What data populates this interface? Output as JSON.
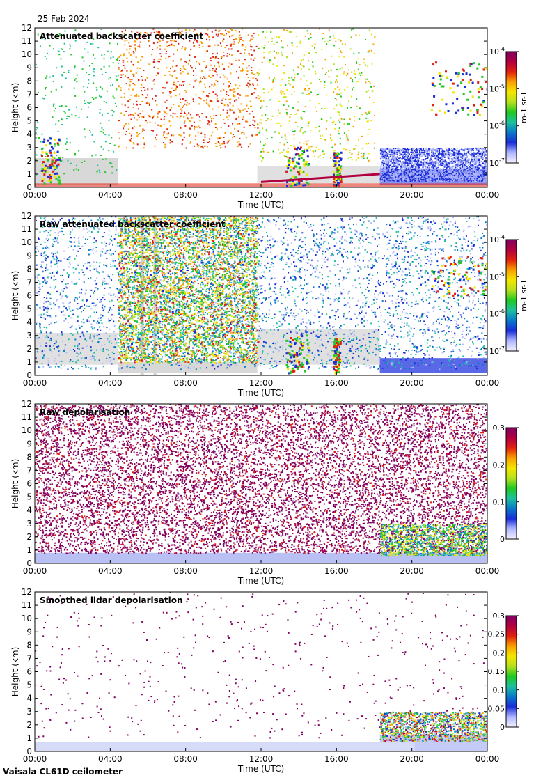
{
  "header": {
    "date": "25 Feb 2024"
  },
  "footer": {
    "instrument": "Vaisala CL61D ceilometer"
  },
  "chart_data": [
    {
      "type": "heatmap",
      "title": "Attenuated backscatter coefficient",
      "xlabel": "Time (UTC)",
      "ylabel": "Height (km)",
      "xticks": [
        "00:00",
        "04:00",
        "08:00",
        "12:00",
        "16:00",
        "20:00",
        "00:00"
      ],
      "xlim_hours": [
        0,
        24
      ],
      "ylim": [
        0,
        12
      ],
      "yticks": [
        0,
        1,
        2,
        3,
        4,
        5,
        6,
        7,
        8,
        9,
        10,
        11,
        12
      ],
      "colorbar": {
        "scale": "log",
        "units": "m-1 sr-1",
        "ticks": [
          "10-4",
          "10-5",
          "10-6",
          "10-7"
        ],
        "range": [
          1e-07,
          0.0001
        ]
      },
      "features": [
        {
          "name": "surface layer",
          "t_start": 0,
          "t_end": 24,
          "top_km": 0.3
        },
        {
          "name": "cloud",
          "t_start": 0.3,
          "t_end": 1.3,
          "base_km": 0.3,
          "top_km": 3.8
        },
        {
          "name": "cloud",
          "t_start": 13.3,
          "t_end": 14.5,
          "base_km": 0.2,
          "top_km": 3.1
        },
        {
          "name": "cloud",
          "t_start": 15.8,
          "t_end": 16.2,
          "base_km": 0.2,
          "top_km": 2.8
        },
        {
          "name": "boundary layer top",
          "t_start": 12,
          "t_end": 18.3,
          "height_km_from": 0.4,
          "height_km_to": 1.0
        },
        {
          "name": "upper cloud",
          "t_start": 21,
          "t_end": 24,
          "base_km": 5.5,
          "top_km": 9.5
        }
      ]
    },
    {
      "type": "heatmap",
      "title": "Raw attenuated backscatter coefficient",
      "xlabel": "Time (UTC)",
      "ylabel": "Height (km)",
      "xticks": [
        "00:00",
        "04:00",
        "08:00",
        "12:00",
        "16:00",
        "20:00",
        "00:00"
      ],
      "xlim_hours": [
        0,
        24
      ],
      "ylim": [
        0,
        12
      ],
      "yticks": [
        0,
        1,
        2,
        3,
        4,
        5,
        6,
        7,
        8,
        9,
        10,
        11,
        12
      ],
      "colorbar": {
        "scale": "log",
        "units": "m-1 sr-1",
        "ticks": [
          "10-4",
          "10-5",
          "10-6",
          "10-7"
        ],
        "range": [
          1e-07,
          0.0001
        ]
      },
      "features": [
        {
          "name": "high solar noise",
          "t_start": 4.4,
          "t_end": 11.8,
          "base_km": 1.0,
          "top_km": 12
        },
        {
          "name": "cloud",
          "t_start": 13.3,
          "t_end": 14.5,
          "base_km": 0.2,
          "top_km": 3.1
        },
        {
          "name": "cloud",
          "t_start": 15.8,
          "t_end": 16.2,
          "base_km": 0.2,
          "top_km": 2.8
        },
        {
          "name": "upper cloud",
          "t_start": 21,
          "t_end": 24,
          "base_km": 6.0,
          "top_km": 9.0
        }
      ]
    },
    {
      "type": "heatmap",
      "title": "Raw depolarisation",
      "xlabel": "Time (UTC)",
      "ylabel": "Height (km)",
      "xticks": [
        "00:00",
        "04:00",
        "08:00",
        "12:00",
        "16:00",
        "20:00",
        "00:00"
      ],
      "xlim_hours": [
        0,
        24
      ],
      "ylim": [
        0,
        12
      ],
      "yticks": [
        0,
        1,
        2,
        3,
        4,
        5,
        6,
        7,
        8,
        9,
        10,
        11,
        12
      ],
      "colorbar": {
        "scale": "linear",
        "ticks": [
          "0.3",
          "0.2",
          "0.1",
          "0"
        ],
        "range": [
          0,
          0.3
        ]
      }
    },
    {
      "type": "heatmap",
      "title": "Smoothed lidar depolarisation",
      "xlabel": "Time (UTC)",
      "ylabel": "Height (km)",
      "xticks": [
        "00:00",
        "04:00",
        "08:00",
        "12:00",
        "16:00",
        "20:00",
        "00:00"
      ],
      "xlim_hours": [
        0,
        24
      ],
      "ylim": [
        0,
        12
      ],
      "yticks": [
        0,
        1,
        2,
        3,
        4,
        5,
        6,
        7,
        8,
        9,
        10,
        11,
        12
      ],
      "colorbar": {
        "scale": "linear",
        "ticks": [
          "0.3",
          "0.25",
          "0.2",
          "0.15",
          "0.1",
          "0.05",
          "0"
        ],
        "range": [
          0,
          0.3
        ]
      }
    }
  ],
  "colormap": [
    "#f2f2ff",
    "#b0b8ff",
    "#1a2dd8",
    "#0a78c8",
    "#1ec0a0",
    "#22c822",
    "#b4e01e",
    "#f4e600",
    "#f8a000",
    "#e02010",
    "#b00040",
    "#800060"
  ]
}
